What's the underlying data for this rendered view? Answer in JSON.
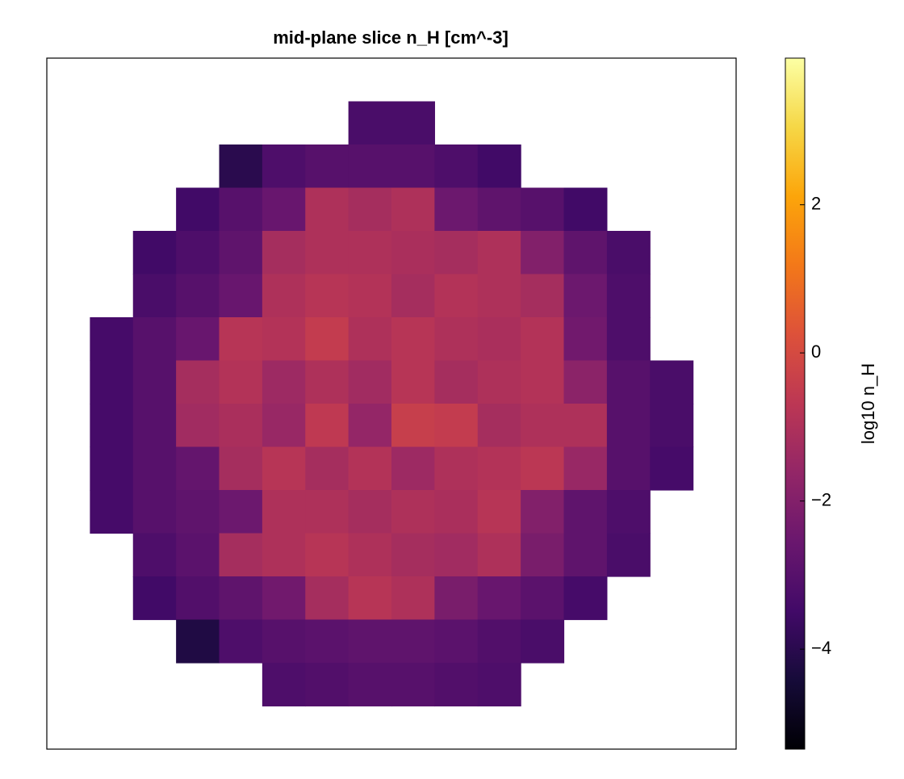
{
  "chart_data": {
    "type": "heatmap",
    "title": "mid-plane slice  n_H [cm^-3]",
    "colorbar_label": "log10 n_H",
    "colormap": "inferno",
    "colorlim": [
      -5.35,
      3.98
    ],
    "colorticks": [
      {
        "value": -4,
        "label": "−4"
      },
      {
        "value": -2,
        "label": "−2"
      },
      0,
      2
    ],
    "z": [
      [
        null,
        null,
        null,
        null,
        null,
        null,
        null,
        null,
        null,
        null,
        null,
        null,
        null,
        null,
        null,
        null
      ],
      [
        null,
        null,
        null,
        null,
        null,
        null,
        null,
        -3.3,
        -3.3,
        null,
        null,
        null,
        null,
        null,
        null,
        null
      ],
      [
        null,
        null,
        null,
        null,
        -4.0,
        -3.2,
        -3.0,
        -3.0,
        -3.0,
        -3.2,
        -3.5,
        null,
        null,
        null,
        null,
        null
      ],
      [
        null,
        null,
        null,
        -3.5,
        -3.0,
        -2.6,
        -1.0,
        -1.2,
        -1.0,
        -2.5,
        -2.8,
        -3.0,
        -3.5,
        null,
        null,
        null
      ],
      [
        null,
        null,
        -3.5,
        -3.2,
        -2.8,
        -1.2,
        -1.0,
        -1.0,
        -1.1,
        -1.2,
        -1.0,
        -2.0,
        -2.8,
        -3.3,
        null,
        null
      ],
      [
        null,
        null,
        -3.3,
        -3.0,
        -2.6,
        -1.0,
        -0.8,
        -0.9,
        -1.2,
        -0.9,
        -1.0,
        -1.2,
        -2.5,
        -3.2,
        null,
        null
      ],
      [
        null,
        -3.4,
        -3.0,
        -2.6,
        -0.8,
        -0.9,
        -0.5,
        -1.0,
        -0.8,
        -1.0,
        -1.1,
        -0.9,
        -2.4,
        -3.2,
        null,
        null
      ],
      [
        null,
        -3.4,
        -3.0,
        -1.2,
        -0.9,
        -1.4,
        -1.0,
        -1.3,
        -0.8,
        -1.2,
        -1.0,
        -0.9,
        -1.8,
        -3.0,
        -3.3,
        null
      ],
      [
        null,
        -3.4,
        -3.0,
        -1.3,
        -1.1,
        -1.5,
        -0.6,
        -1.6,
        -0.4,
        -0.5,
        -1.2,
        -1.0,
        -1.0,
        -3.0,
        -3.3,
        null
      ],
      [
        null,
        -3.4,
        -3.0,
        -2.7,
        -1.2,
        -0.8,
        -1.2,
        -0.9,
        -1.4,
        -1.0,
        -0.9,
        -0.7,
        -1.5,
        -3.0,
        -3.4,
        null
      ],
      [
        null,
        -3.4,
        -3.0,
        -2.8,
        -2.5,
        -1.0,
        -1.0,
        -1.2,
        -1.0,
        -1.1,
        -0.8,
        -2.0,
        -2.8,
        -3.2,
        null,
        null
      ],
      [
        null,
        null,
        -3.2,
        -2.9,
        -1.2,
        -1.0,
        -0.8,
        -1.0,
        -1.2,
        -1.3,
        -1.0,
        -2.2,
        -2.8,
        -3.3,
        null,
        null
      ],
      [
        null,
        null,
        -3.5,
        -3.1,
        -2.8,
        -2.4,
        -1.2,
        -0.8,
        -1.0,
        -2.2,
        -2.6,
        -2.9,
        -3.4,
        null,
        null,
        null
      ],
      [
        null,
        null,
        null,
        -4.2,
        -3.2,
        -3.0,
        -2.9,
        -2.8,
        -2.8,
        -2.9,
        -3.1,
        -3.3,
        null,
        null,
        null,
        null
      ],
      [
        null,
        null,
        null,
        null,
        null,
        -3.2,
        -3.1,
        -3.0,
        -3.0,
        -3.1,
        -3.2,
        null,
        null,
        null,
        null,
        null
      ],
      [
        null,
        null,
        null,
        null,
        null,
        null,
        null,
        null,
        null,
        null,
        null,
        null,
        null,
        null,
        null,
        null
      ]
    ]
  }
}
